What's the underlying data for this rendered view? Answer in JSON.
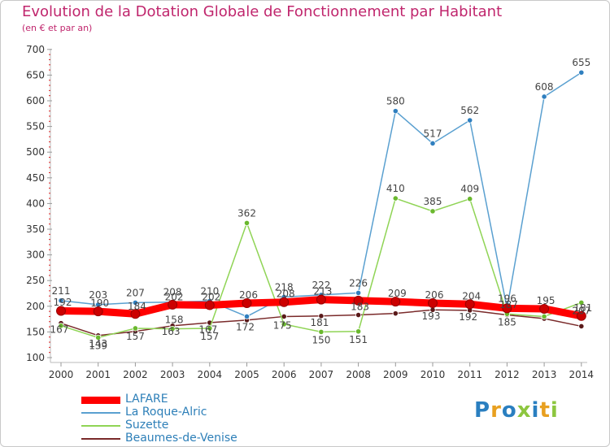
{
  "title": "Evolution de la Dotation Globale de Fonctionnement par Habitant",
  "subtitle": "(en € et par an)",
  "brand": {
    "letters": [
      "P",
      "r",
      "o",
      "x",
      "i",
      "t",
      "i"
    ],
    "colors": [
      "#2a7fc0",
      "#e8a020",
      "#2a7fc0",
      "#8dc63f",
      "#2a7fc0",
      "#e8a020",
      "#8dc63f"
    ]
  },
  "chart_data": {
    "type": "line",
    "categories": [
      "2000",
      "2001",
      "2002",
      "2003",
      "2004",
      "2005",
      "2006",
      "2007",
      "2008",
      "2009",
      "2010",
      "2011",
      "2012",
      "2013",
      "2014"
    ],
    "ylim": [
      100,
      700
    ],
    "yticks": [
      100,
      150,
      200,
      250,
      300,
      350,
      400,
      450,
      500,
      550,
      600,
      650,
      700
    ],
    "grid": false,
    "legend_position": "bottom-left",
    "series": [
      {
        "name": "LAFARE",
        "color": "#ff0000",
        "marker": "#cc0000",
        "values": [
          191,
          190,
          185,
          203,
          202,
          206,
          208,
          213,
          211,
          209,
          206,
          204,
          196,
          195,
          181
        ],
        "labels": [
          "",
          "",
          "",
          "",
          "",
          "",
          "",
          "",
          "",
          "",
          "",
          "",
          "",
          "",
          ""
        ]
      },
      {
        "name": "La Roque-Alric",
        "color": "#5aa0d0",
        "marker": "#2f7fbf",
        "values": [
          211,
          203,
          207,
          208,
          210,
          180,
          218,
          222,
          226,
          580,
          517,
          562,
          196,
          608,
          655
        ],
        "labels": [
          "211",
          "203",
          "207",
          "208",
          "210",
          "",
          "218",
          "222",
          "226",
          "580",
          "517",
          "562",
          "196",
          "608",
          "655"
        ]
      },
      {
        "name": "Suzette",
        "color": "#8fd455",
        "marker": "#6ab82e",
        "values": [
          162,
          139,
          157,
          156,
          157,
          362,
          165,
          150,
          151,
          410,
          385,
          409,
          185,
          180,
          207
        ],
        "labels": [
          "",
          "139",
          "157",
          "",
          "157",
          "362",
          "",
          "150",
          "151",
          "410",
          "385",
          "409",
          "185",
          "",
          "207"
        ]
      },
      {
        "name": "Beaumes-de-Venise",
        "color": "#7a2a2a",
        "marker": "#5a1a1a",
        "values": [
          167,
          143,
          151,
          162,
          168,
          173,
          180,
          181,
          183,
          186,
          193,
          192,
          183,
          176,
          161
        ],
        "labels": [
          "",
          "143",
          "",
          "",
          "",
          "",
          "",
          "",
          "",
          "",
          "",
          "",
          "",
          "",
          ""
        ]
      }
    ],
    "extra_labels": [
      {
        "year": "2000",
        "text": "192"
      },
      {
        "year": "2000",
        "text": "167"
      },
      {
        "year": "2001",
        "text": "190"
      },
      {
        "year": "2002",
        "text": "184"
      },
      {
        "year": "2003",
        "text": "202"
      },
      {
        "year": "2003",
        "text": "163"
      },
      {
        "year": "2003",
        "text": "158"
      },
      {
        "year": "2004",
        "text": "202"
      },
      {
        "year": "2004",
        "text": "167"
      },
      {
        "year": "2005",
        "text": "206"
      },
      {
        "year": "2005",
        "text": "172"
      },
      {
        "year": "2006",
        "text": "208"
      },
      {
        "year": "2006",
        "text": "175"
      },
      {
        "year": "2007",
        "text": "213"
      },
      {
        "year": "2007",
        "text": "181"
      },
      {
        "year": "2008",
        "text": "183"
      },
      {
        "year": "2009",
        "text": "209"
      },
      {
        "year": "2010",
        "text": "206"
      },
      {
        "year": "2010",
        "text": "193"
      },
      {
        "year": "2011",
        "text": "204"
      },
      {
        "year": "2011",
        "text": "192"
      },
      {
        "year": "2012",
        "text": "187"
      },
      {
        "year": "2013",
        "text": "195"
      },
      {
        "year": "2014",
        "text": "181"
      }
    ]
  }
}
